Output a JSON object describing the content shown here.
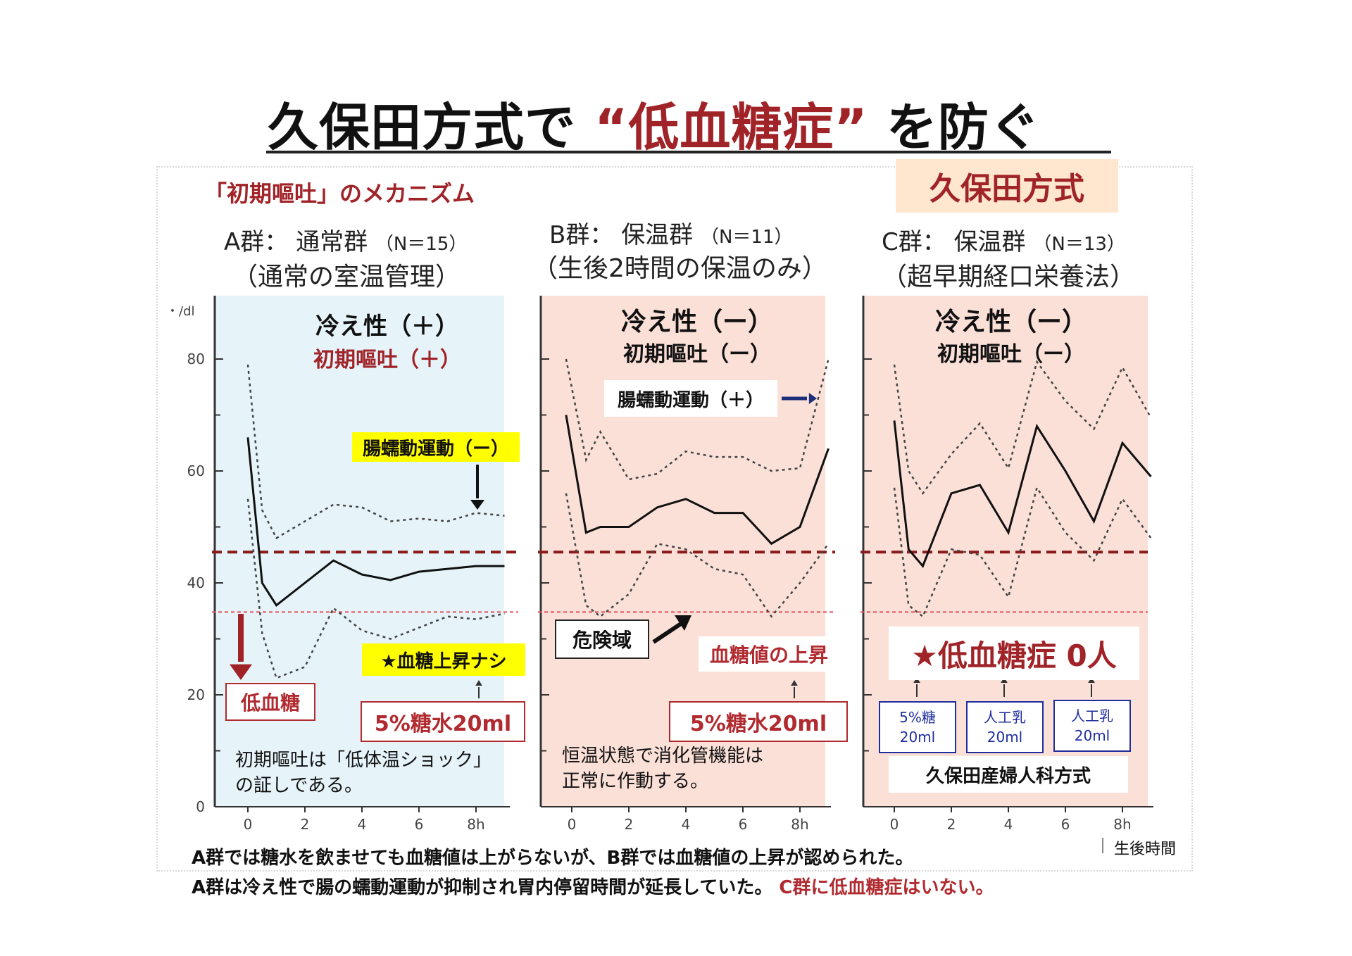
{
  "title": {
    "part1": "久保田方式で",
    "highlight": "“低血糖症”",
    "part2": "を防ぐ"
  },
  "mechanism_label": "「初期嘔吐」のメカニズム",
  "kubota_badge": "久保田方式",
  "groups": {
    "A": {
      "header": "A群： 通常群",
      "n": "（N＝15）",
      "sub": "（通常の室温管理）",
      "cold": "冷え性（＋）",
      "vomit": "初期嘔吐（＋）"
    },
    "B": {
      "header": "B群： 保温群",
      "n": "（N＝11）",
      "sub": "（生後2時間の保温のみ）",
      "cold": "冷え性（ー）",
      "vomit": "初期嘔吐（ー）"
    },
    "C": {
      "header": "C群： 保温群",
      "n": "（N＝13）",
      "sub": "（超早期経口栄養法）",
      "cold": "冷え性（ー）",
      "vomit": "初期嘔吐（ー）"
    }
  },
  "annotations": {
    "a_peristalsis": "腸蠕動運動（ー）",
    "a_no_rise": "★血糖上昇ナシ",
    "a_hypoglycemia": "低血糖",
    "a_sugar_water": "5%糖水20ml",
    "a_note_line1": "初期嘔吐は「低体温ショック」",
    "a_note_line2": "の証しである。",
    "b_peristalsis": "腸蠕動運動（＋）",
    "b_danger": "危険域",
    "b_rise": "血糖値の上昇",
    "b_sugar_water": "5%糖水20ml",
    "b_note_line1": "恒温状態で消化管機能は",
    "b_note_line2": "正常に作動する。",
    "c_zero": "★低血糖症 0人",
    "c_box1_l1": "5%糖",
    "c_box1_l2": "20ml",
    "c_box2_l1": "人工乳",
    "c_box2_l2": "20ml",
    "c_box3_l1": "人工乳",
    "c_box3_l2": "20ml",
    "c_method": "久保田産婦人科方式"
  },
  "footer": {
    "line1": "A群では糖水を飲ませても血糖値は上がらないが、B群では血糖値の上昇が認められた。",
    "line2a": "A群は冷え性で腸の蠕動運動が抑制され胃内停留時間が延長していた。",
    "line2b": "C群に低血糖症はいない。"
  },
  "colors": {
    "accent_red": "#a02328",
    "panel_a_bg": "#e6f4fa",
    "panel_bc_bg": "#fbe0d8",
    "threshold_dark": "#8b1a1a",
    "threshold_pink": "#e0505a",
    "blue_arrow": "#1f2e7a"
  },
  "chart_data": [
    {
      "type": "line",
      "panel": "A",
      "ylabel": "・/dl",
      "ylim": [
        0,
        90
      ],
      "y_ticks": [
        0,
        20,
        40,
        60,
        80
      ],
      "xlim": [
        -1,
        9
      ],
      "x_ticks": [
        "0",
        "2",
        "4",
        "6",
        "8h"
      ],
      "x_tick_values": [
        0,
        2,
        4,
        6,
        8
      ],
      "thresholds": [
        45.5,
        34.8
      ],
      "series": [
        {
          "style": "upper",
          "x": [
            0,
            0.5,
            1,
            2,
            3,
            4,
            5,
            6,
            7,
            8,
            9
          ],
          "values": [
            79,
            53,
            48,
            51,
            54,
            53.5,
            51,
            51.5,
            51,
            52.5,
            52
          ]
        },
        {
          "style": "mean",
          "x": [
            0,
            0.5,
            1,
            2,
            3,
            4,
            5,
            6,
            7,
            8,
            9
          ],
          "values": [
            66,
            40,
            36,
            40,
            44,
            41.5,
            40.5,
            42,
            42.5,
            43,
            43
          ]
        },
        {
          "style": "lower",
          "x": [
            0,
            0.5,
            1,
            2,
            3,
            4,
            5,
            6,
            7,
            8,
            9
          ],
          "values": [
            55,
            31,
            23,
            25,
            35.5,
            31.5,
            30,
            32,
            34,
            33.5,
            34.5
          ]
        }
      ]
    },
    {
      "type": "line",
      "panel": "B",
      "ylim": [
        0,
        90
      ],
      "xlim": [
        -1,
        9
      ],
      "x_ticks": [
        "0",
        "2",
        "4",
        "6",
        "8h"
      ],
      "x_tick_values": [
        0,
        2,
        4,
        6,
        8
      ],
      "thresholds": [
        45.5,
        34.8
      ],
      "series": [
        {
          "style": "upper",
          "x": [
            -0.2,
            0.5,
            1,
            2,
            3,
            4,
            5,
            6,
            7,
            8,
            9
          ],
          "values": [
            80,
            62,
            67,
            58.5,
            59.5,
            63.5,
            62.5,
            62.5,
            60,
            60.5,
            80
          ]
        },
        {
          "style": "mean",
          "x": [
            -0.2,
            0.5,
            1,
            2,
            3,
            4,
            5,
            6,
            7,
            8,
            9
          ],
          "values": [
            70,
            49,
            50,
            50,
            53.5,
            55,
            52.5,
            52.5,
            47,
            50,
            64
          ]
        },
        {
          "style": "lower",
          "x": [
            -0.2,
            0.5,
            1,
            2,
            3,
            4,
            5,
            6,
            7,
            8,
            9
          ],
          "values": [
            56,
            36,
            34,
            38,
            47,
            46,
            42.5,
            41.5,
            34,
            40,
            47
          ]
        }
      ]
    },
    {
      "type": "line",
      "panel": "C",
      "ylim": [
        0,
        90
      ],
      "xlim": [
        -1,
        9
      ],
      "x_ticks": [
        "0",
        "2",
        "4",
        "6",
        "8h"
      ],
      "x_tick_values": [
        0,
        2,
        4,
        6,
        8
      ],
      "thresholds": [
        45.5,
        34.8
      ],
      "series": [
        {
          "style": "upper",
          "x": [
            0,
            0.5,
            1,
            2,
            3,
            4,
            5,
            6,
            7,
            8,
            9
          ],
          "values": [
            79,
            60,
            56,
            63,
            68.5,
            60.5,
            79.5,
            72.5,
            67.5,
            78.5,
            69.5
          ]
        },
        {
          "style": "mean",
          "x": [
            0,
            0.5,
            1,
            2,
            3,
            4,
            5,
            6,
            7,
            8,
            9
          ],
          "values": [
            69,
            46,
            43,
            56,
            57.5,
            49,
            68,
            60,
            51,
            65,
            59
          ]
        },
        {
          "style": "lower",
          "x": [
            0,
            0.5,
            1,
            2,
            3,
            4,
            5,
            6,
            7,
            8,
            9
          ],
          "values": [
            57,
            36,
            34,
            46,
            45,
            37.5,
            57,
            49,
            44,
            55,
            48
          ]
        }
      ]
    }
  ]
}
